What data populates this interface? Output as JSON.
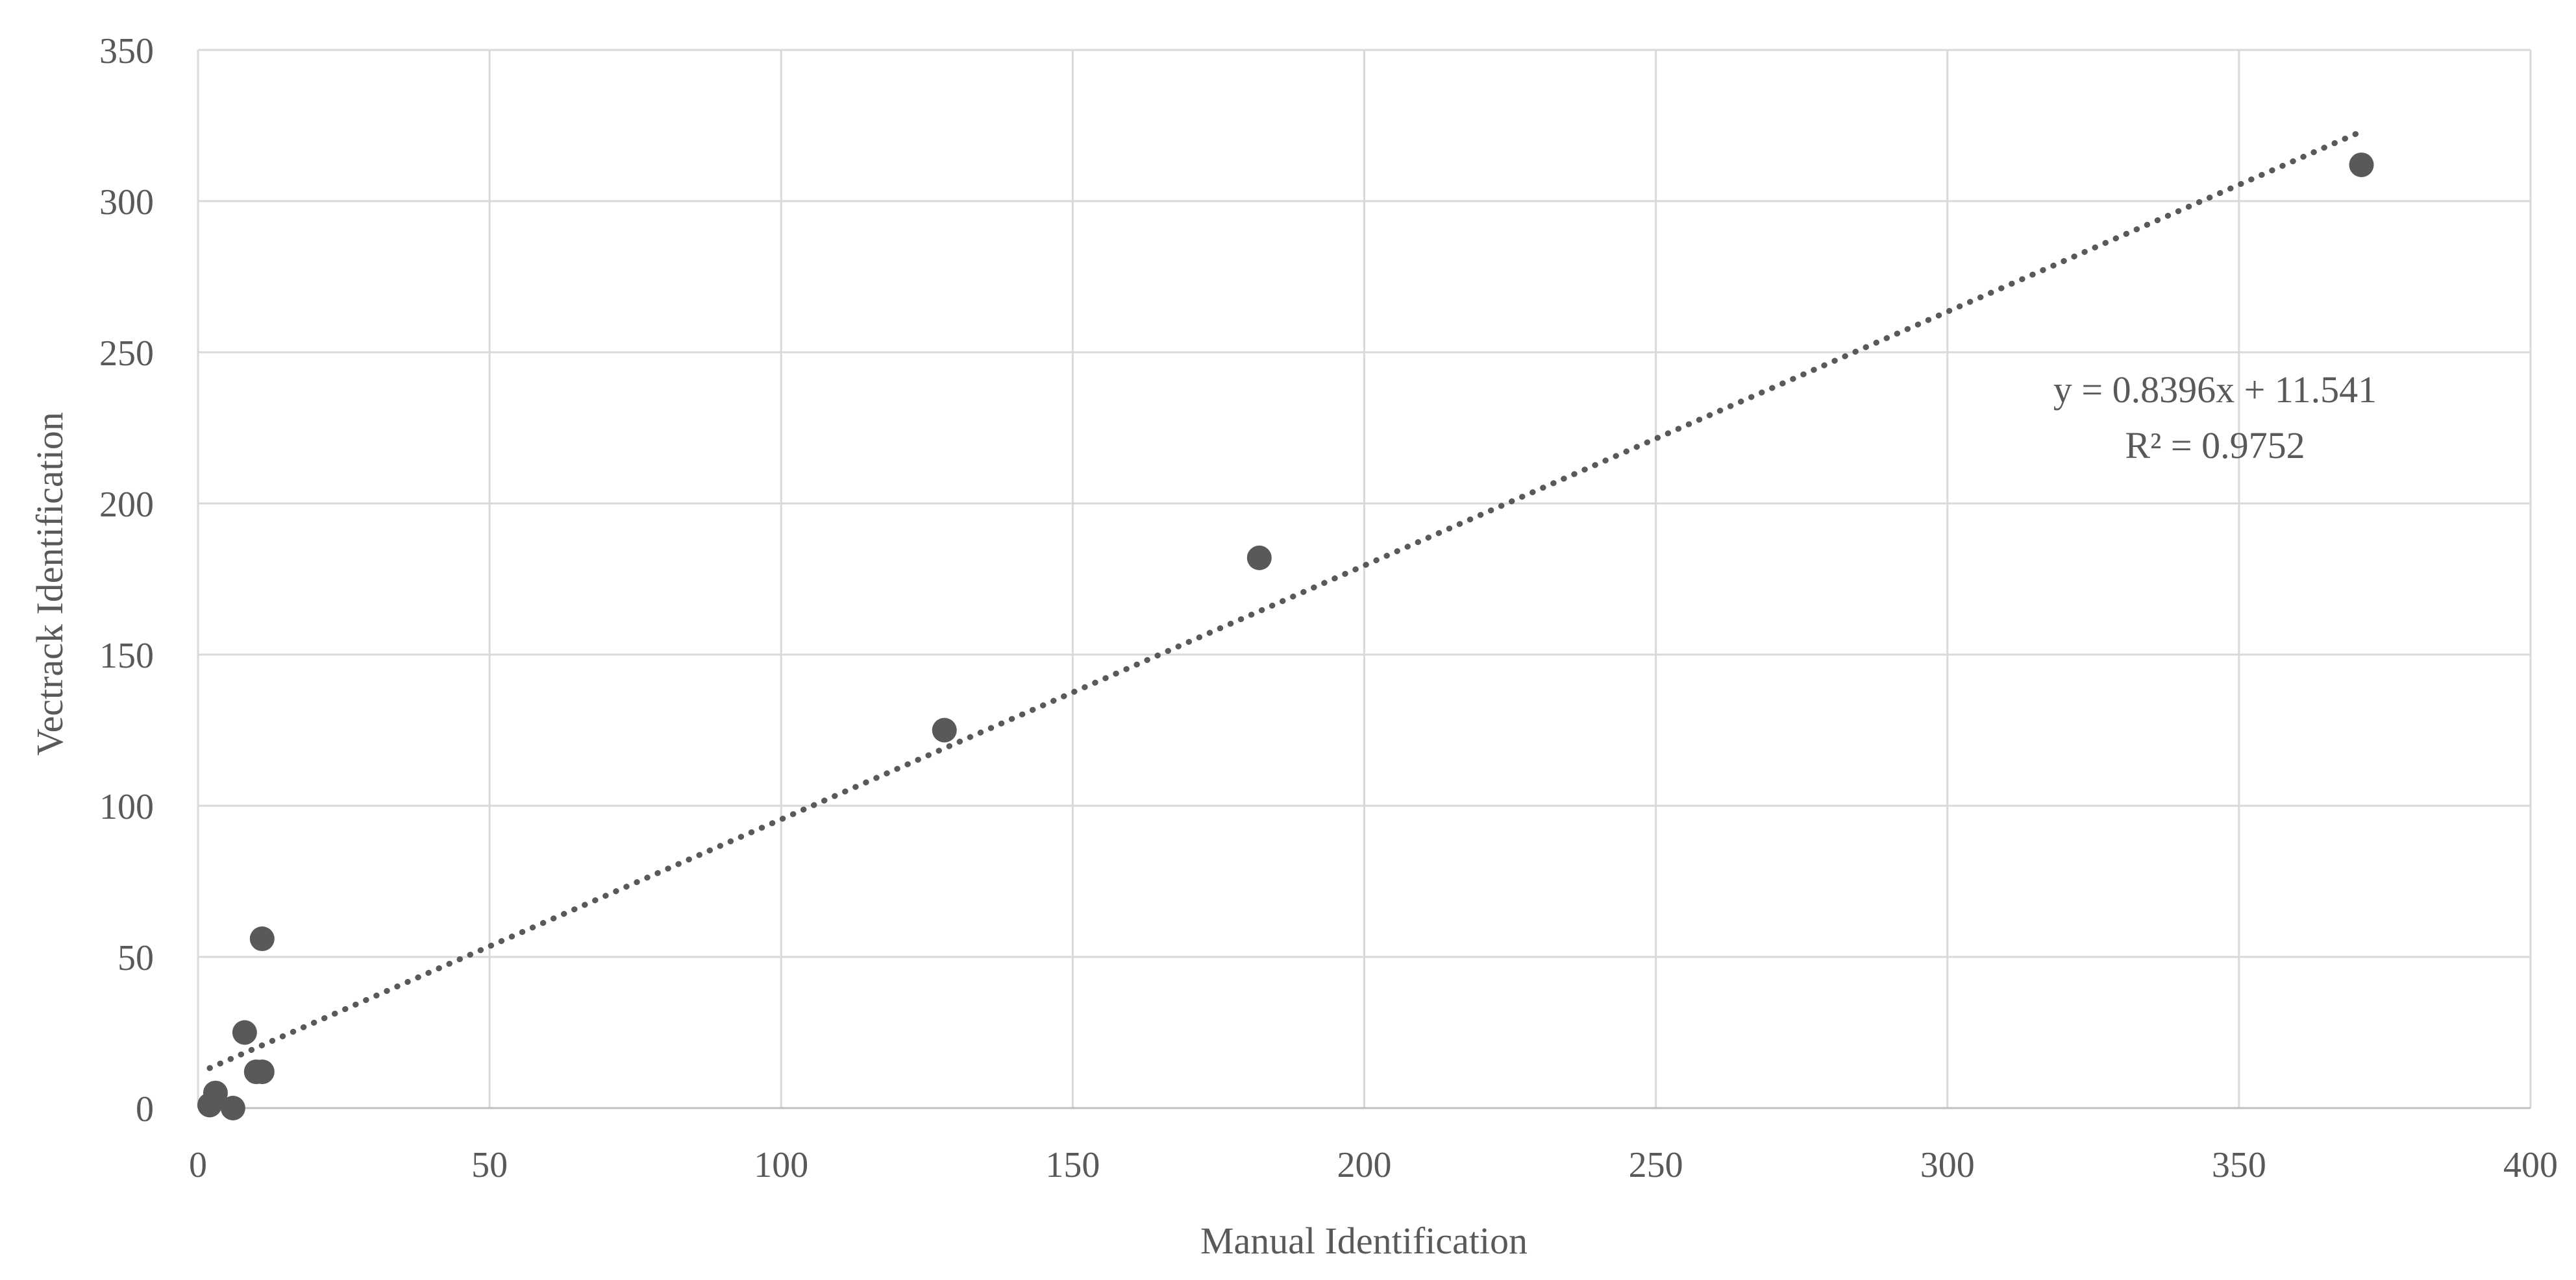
{
  "chart_data": {
    "type": "scatter",
    "title": "",
    "xlabel": "Manual Identification",
    "ylabel": "Vectrack Identification",
    "xlim": [
      0,
      400
    ],
    "ylim": [
      0,
      350
    ],
    "xticks": [
      0,
      50,
      100,
      150,
      200,
      250,
      300,
      350,
      400
    ],
    "yticks": [
      0,
      50,
      100,
      150,
      200,
      250,
      300,
      350
    ],
    "grid": true,
    "legend": "none",
    "series": [
      {
        "points": [
          {
            "x": 2,
            "y": 1
          },
          {
            "x": 3,
            "y": 5
          },
          {
            "x": 6,
            "y": 0
          },
          {
            "x": 8,
            "y": 25
          },
          {
            "x": 10,
            "y": 12
          },
          {
            "x": 11,
            "y": 12
          },
          {
            "x": 11,
            "y": 56
          },
          {
            "x": 128,
            "y": 125
          },
          {
            "x": 182,
            "y": 182
          },
          {
            "x": 371,
            "y": 312
          }
        ]
      }
    ],
    "trendline": {
      "type": "linear",
      "slope": 0.8396,
      "intercept": 11.541,
      "x_range": [
        2,
        371
      ],
      "style": "dotted",
      "equation_label": "y = 0.8396x + 11.541",
      "r2_label": "R² = 0.9752"
    },
    "colors": {
      "marker": "#595959",
      "trendline": "#595959",
      "grid": "#d9d9d9",
      "text": "#595959"
    }
  }
}
